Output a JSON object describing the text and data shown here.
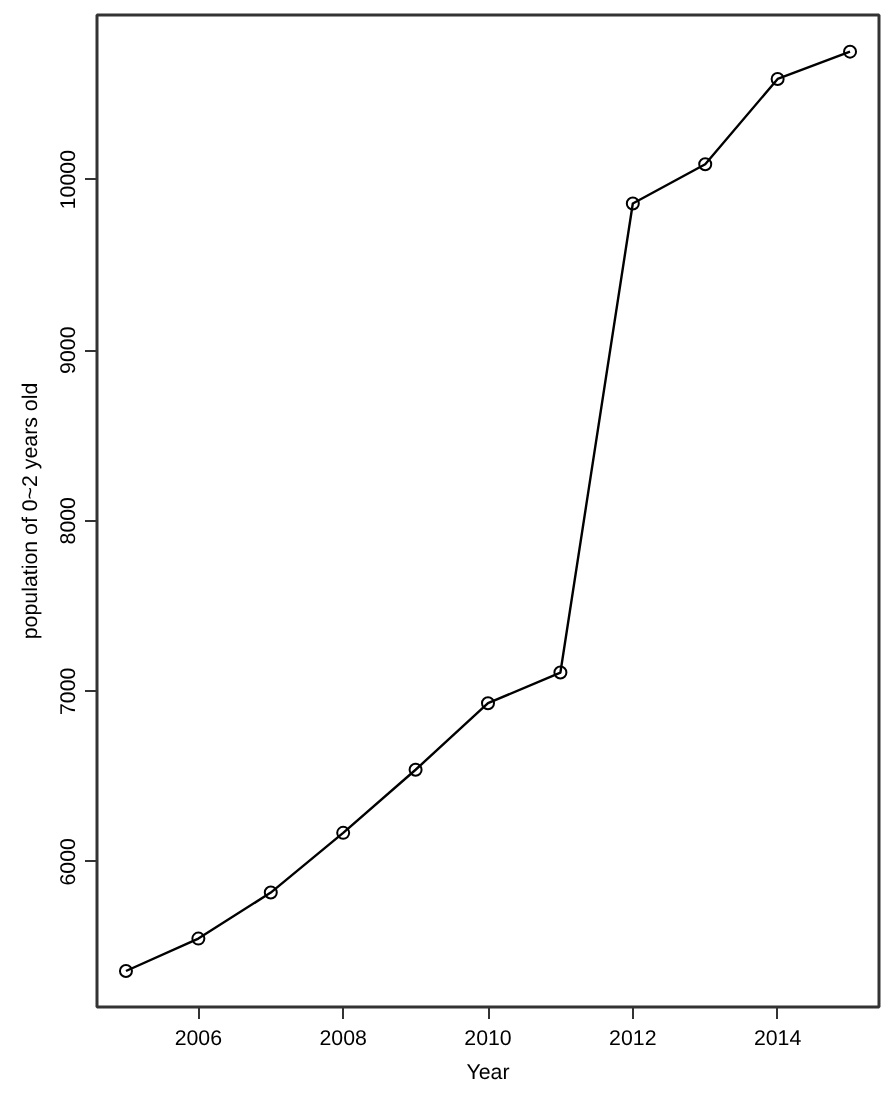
{
  "chart_data": {
    "type": "line",
    "xlabel": "Year",
    "ylabel": "population of 0~2 years old",
    "x": [
      2005,
      2006,
      2007,
      2008,
      2009,
      2010,
      2011,
      2012,
      2013,
      2014,
      2015
    ],
    "series": [
      {
        "color": "#000000",
        "values": [
          5360,
          5550,
          5820,
          6170,
          6540,
          6930,
          7110,
          9860,
          10090,
          10590,
          10750
        ]
      }
    ],
    "xlim": [
      2004.6,
      2015.4
    ],
    "ylim": [
      5149,
      10965
    ],
    "xticks": [
      2006,
      2008,
      2010,
      2012,
      2014
    ],
    "yticks": [
      6000,
      7000,
      8000,
      9000,
      10000
    ],
    "grid": false,
    "marker": "circle",
    "line_style": "solid"
  }
}
